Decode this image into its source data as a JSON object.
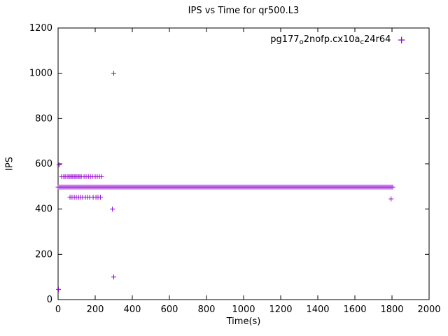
{
  "chart_data": {
    "type": "scatter",
    "title": "IPS vs Time for qr500.L3",
    "xlabel": "Time(s)",
    "ylabel": "IPS",
    "xlim": [
      0,
      2000
    ],
    "ylim": [
      0,
      1200
    ],
    "xticks": [
      0,
      200,
      400,
      600,
      800,
      1000,
      1200,
      1400,
      1600,
      1800,
      2000
    ],
    "yticks": [
      0,
      200,
      400,
      600,
      800,
      1000,
      1200
    ],
    "grid": false,
    "marker": "plus",
    "color": "#9400D3",
    "legend": {
      "position": "top-right-inside",
      "label_plain": "pg177o2nofp.cx10ac24r64",
      "label_parts": [
        {
          "text": "pg177",
          "sub": false
        },
        {
          "text": "o",
          "sub": true
        },
        {
          "text": "2nofp.cx10a",
          "sub": false
        },
        {
          "text": "c",
          "sub": true
        },
        {
          "text": "24r64",
          "sub": false
        }
      ],
      "marker_glyph": "+"
    },
    "series": [
      {
        "name": "pg177o2nofp.cx10ac24r64",
        "band": {
          "x_start": 0,
          "x_end": 1805,
          "y": 497,
          "note": "dense run of samples at ~497-500 IPS for entire interval"
        },
        "points": [
          [
            5,
            595
          ],
          [
            2,
            45
          ],
          [
            19,
            543
          ],
          [
            30,
            543
          ],
          [
            38,
            543
          ],
          [
            49,
            543
          ],
          [
            57,
            543
          ],
          [
            64,
            543
          ],
          [
            72,
            543
          ],
          [
            79,
            543
          ],
          [
            87,
            543
          ],
          [
            94,
            543
          ],
          [
            102,
            543
          ],
          [
            110,
            543
          ],
          [
            117,
            543
          ],
          [
            125,
            543
          ],
          [
            140,
            543
          ],
          [
            151,
            543
          ],
          [
            163,
            543
          ],
          [
            174,
            543
          ],
          [
            185,
            543
          ],
          [
            200,
            543
          ],
          [
            211,
            543
          ],
          [
            223,
            543
          ],
          [
            234,
            543
          ],
          [
            64,
            452
          ],
          [
            75,
            452
          ],
          [
            87,
            452
          ],
          [
            98,
            452
          ],
          [
            110,
            452
          ],
          [
            121,
            452
          ],
          [
            132,
            452
          ],
          [
            147,
            452
          ],
          [
            158,
            452
          ],
          [
            170,
            452
          ],
          [
            189,
            452
          ],
          [
            204,
            452
          ],
          [
            215,
            452
          ],
          [
            228,
            452
          ],
          [
            300,
            1000
          ],
          [
            293,
            400
          ],
          [
            300,
            100
          ],
          [
            1795,
            445
          ]
        ]
      }
    ]
  }
}
